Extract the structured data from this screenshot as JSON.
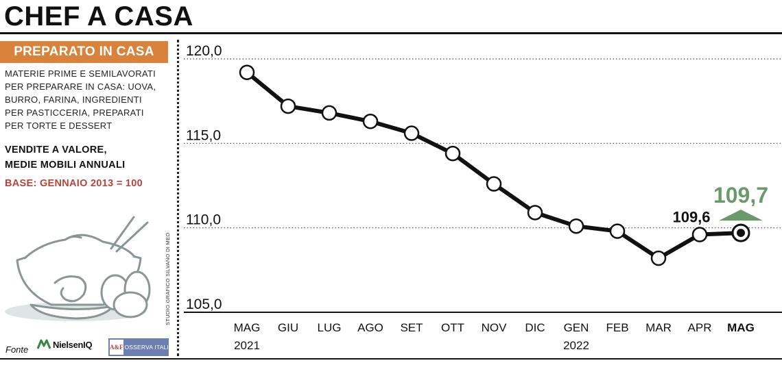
{
  "header": {
    "title": "CHEF A CASA"
  },
  "sidebar": {
    "badge": "PREPARATO IN CASA",
    "description_lines": [
      "MATERIE PRIME E SEMILAVORATI",
      "PER PREPARARE IN CASA: UOVA,",
      "BURRO, FARINA, INGREDIENTI",
      "PER PASTICCERIA,  PREPARATI",
      "PER TORTE E DESSERT"
    ],
    "measure_lines": [
      "VENDITE A VALORE,",
      "MEDIE MOBILI ANNUALI"
    ],
    "base": "BASE: GENNAIO 2013 = 100",
    "credit": "STUDIO GRAFICO SILVANO DI MEO"
  },
  "footer": {
    "fonte": "Fonte",
    "source1": "NielsenIQ",
    "source2_logo": "A&F",
    "source2": "OSSERVA ITALIA"
  },
  "colors": {
    "accent_orange": "#d9823b",
    "base_red": "#b5453b",
    "highlight_green": "#6a9a6a",
    "line": "#111111",
    "illustration": "#8a9696"
  },
  "chart_data": {
    "type": "line",
    "title": "",
    "xlabel": "",
    "ylabel": "",
    "ylim": [
      105,
      120
    ],
    "yticks": [
      105,
      110,
      115,
      120
    ],
    "ytick_labels": [
      "105,0",
      "110,0",
      "115,0",
      "120,0"
    ],
    "grid": true,
    "categories": [
      "MAG",
      "GIU",
      "LUG",
      "AGO",
      "SET",
      "OTT",
      "NOV",
      "DIC",
      "GEN",
      "FEB",
      "MAR",
      "APR",
      "MAG"
    ],
    "year_labels": [
      {
        "index": 0,
        "label": "2021"
      },
      {
        "index": 8,
        "label": "2022"
      }
    ],
    "series": [
      {
        "values": [
          119.2,
          117.2,
          116.8,
          116.3,
          115.6,
          114.4,
          112.6,
          110.9,
          110.1,
          109.8,
          108.2,
          109.6,
          109.7
        ]
      }
    ],
    "annotations": [
      {
        "index": 11,
        "label": "109,6"
      },
      {
        "index": 12,
        "label": "109,7",
        "marker": "up-arrow"
      }
    ]
  }
}
